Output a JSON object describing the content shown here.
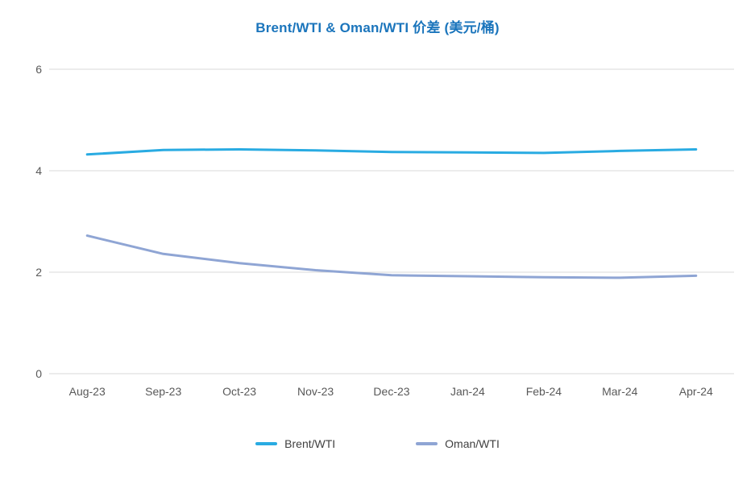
{
  "chart_data": {
    "type": "line",
    "title": "Brent/WTI & Oman/WTI 价差 (美元/桶)",
    "categories": [
      "Aug-23",
      "Sep-23",
      "Oct-23",
      "Nov-23",
      "Dec-23",
      "Jan-24",
      "Feb-24",
      "Mar-24",
      "Apr-24"
    ],
    "series": [
      {
        "name": "Brent/WTI",
        "color": "#29ABE2",
        "values": [
          4.32,
          4.41,
          4.42,
          4.4,
          4.37,
          4.36,
          4.35,
          4.39,
          4.42
        ]
      },
      {
        "name": "Oman/WTI",
        "color": "#8FA5D4",
        "values": [
          2.72,
          2.36,
          2.18,
          2.04,
          1.94,
          1.92,
          1.9,
          1.89,
          1.93
        ]
      }
    ],
    "xlabel": "",
    "ylabel": "",
    "ylim": [
      0,
      6
    ],
    "yticks": [
      0,
      2,
      4,
      6
    ],
    "grid": "horizontal-only",
    "legend_position": "bottom"
  },
  "colors": {
    "title": "#1B75BC",
    "axis_label": "#595959",
    "gridline": "#D9D9D9",
    "legend_text": "#404040",
    "background": "#FFFFFF"
  }
}
